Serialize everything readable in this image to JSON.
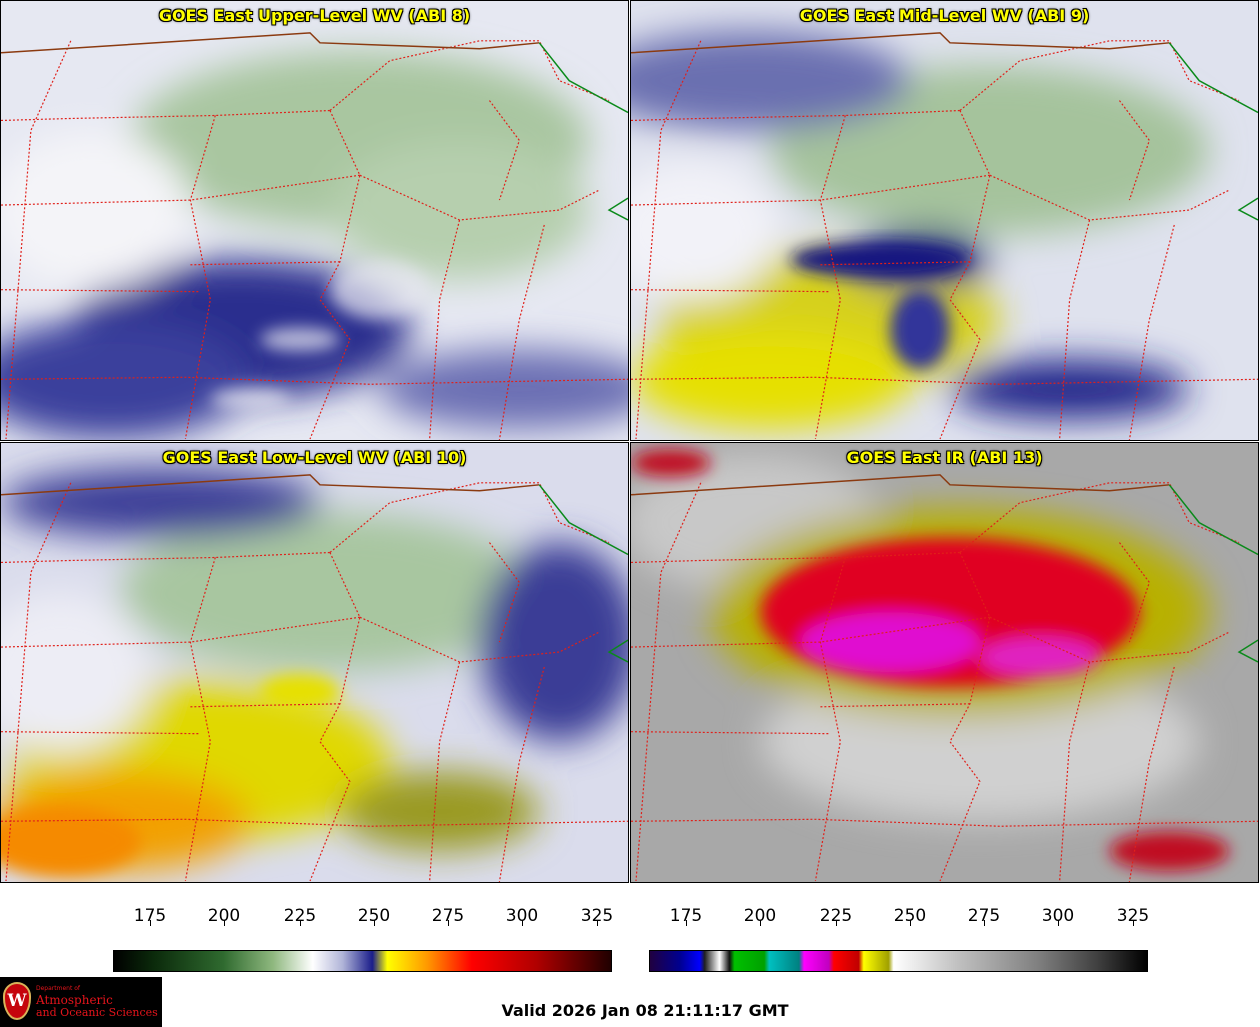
{
  "panels": [
    {
      "id": "upper",
      "title": "GOES East Upper-Level WV (ABI 8)"
    },
    {
      "id": "mid",
      "title": "GOES East Mid-Level WV (ABI 9)"
    },
    {
      "id": "low",
      "title": "GOES East Low-Level WV (ABI 10)"
    },
    {
      "id": "ir",
      "title": "GOES East IR (ABI 13)"
    }
  ],
  "colorbars": {
    "wv": {
      "ticks": [
        "175",
        "200",
        "225",
        "250",
        "275",
        "300",
        "325"
      ]
    },
    "ir": {
      "ticks": [
        "175",
        "200",
        "225",
        "250",
        "275",
        "300",
        "325"
      ]
    }
  },
  "colors": {
    "state_border": "#e0201a",
    "country_border": "#8b3a10",
    "canada_border": "#0a8a1a"
  },
  "logo": {
    "dept": "Department of",
    "line1": "Atmospheric",
    "line2": "and Oceanic Sciences",
    "seal_letter": "W"
  },
  "valid_time": "Valid 2026 Jan 08 21:11:17 GMT"
}
